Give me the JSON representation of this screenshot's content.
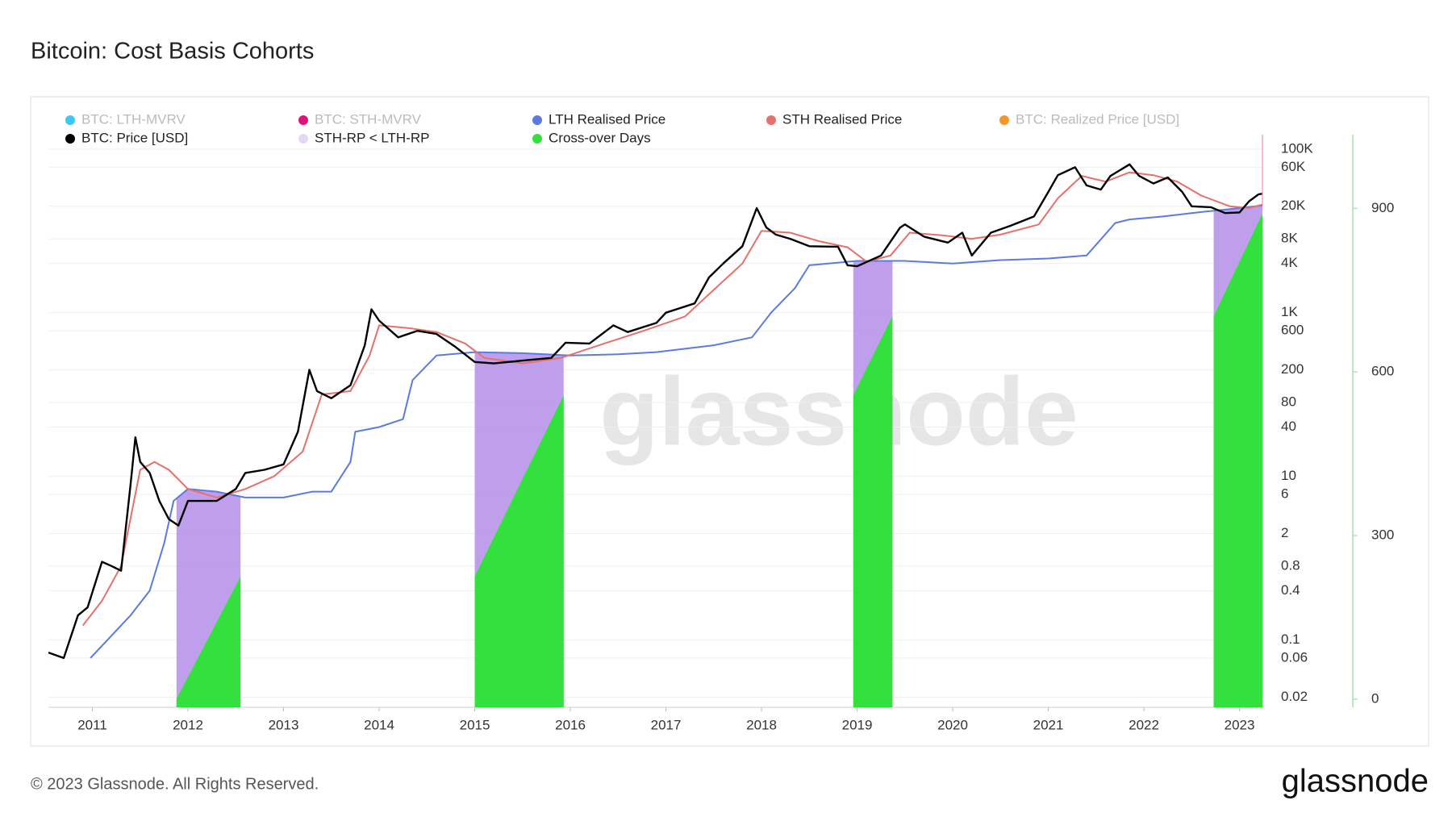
{
  "chart_data": {
    "type": "line",
    "title": "Bitcoin: Cost Basis Cohorts",
    "watermark": "glassnode",
    "footer": "© 2023 Glassnode. All Rights Reserved.",
    "logo": "glassnode",
    "log_scale": true,
    "grid": true,
    "xlim": [
      2010.54,
      2023.24
    ],
    "xticks": [
      2011,
      2012,
      2013,
      2014,
      2015,
      2016,
      2017,
      2018,
      2019,
      2020,
      2021,
      2022,
      2023
    ],
    "ylim": [
      0.015,
      150000
    ],
    "yticks": [
      {
        "value": 100000,
        "label": "100K"
      },
      {
        "value": 60000,
        "label": "60K"
      },
      {
        "value": 20000,
        "label": "20K"
      },
      {
        "value": 8000,
        "label": "8K"
      },
      {
        "value": 4000,
        "label": "4K"
      },
      {
        "value": 1000,
        "label": "1K"
      },
      600,
      200,
      80,
      40,
      10,
      6,
      2,
      0.8,
      0.4,
      0.1,
      0.06,
      0.02
    ],
    "y2lim": [
      -15,
      1035
    ],
    "y2ticks": [
      0,
      300,
      600,
      900
    ],
    "series": [
      {
        "name": "BTC: LTH-MVRV",
        "color": "#3dc7f5",
        "visible": false
      },
      {
        "name": "BTC: STH-MVRV",
        "color": "#e0137a",
        "visible": false
      },
      {
        "name": "LTH Realised Price",
        "color": "#5b7be0",
        "visible": true,
        "x": [
          2010.98,
          2011.4,
          2011.6,
          2011.75,
          2011.85,
          2012.0,
          2012.3,
          2012.6,
          2013.0,
          2013.3,
          2013.5,
          2013.7,
          2013.75,
          2014.0,
          2014.25,
          2014.35,
          2014.6,
          2015.0,
          2015.5,
          2016.0,
          2016.5,
          2016.9,
          2017.5,
          2017.9,
          2018.1,
          2018.35,
          2018.5,
          2019.0,
          2019.5,
          2020.0,
          2020.5,
          2021.0,
          2021.4,
          2021.7,
          2021.85,
          2022.2,
          2022.6,
          2023.0,
          2023.24
        ],
        "values": [
          0.06,
          0.2,
          0.4,
          1.5,
          5,
          7,
          6.5,
          5.5,
          5.5,
          6.5,
          6.5,
          15,
          35,
          40,
          50,
          150,
          300,
          330,
          320,
          300,
          310,
          330,
          400,
          500,
          1000,
          2000,
          3800,
          4300,
          4300,
          4000,
          4400,
          4600,
          5000,
          12500,
          13800,
          15000,
          17000,
          19000,
          20500
        ]
      },
      {
        "name": "STH Realised Price",
        "color": "#e8706b",
        "visible": true,
        "x": [
          2010.9,
          2011.1,
          2011.3,
          2011.5,
          2011.65,
          2011.8,
          2012.0,
          2012.3,
          2012.6,
          2012.9,
          2013.2,
          2013.4,
          2013.7,
          2013.9,
          2014.0,
          2014.3,
          2014.6,
          2014.9,
          2015.1,
          2015.5,
          2015.9,
          2016.3,
          2016.8,
          2017.2,
          2017.5,
          2017.8,
          2018.0,
          2018.3,
          2018.6,
          2018.9,
          2019.1,
          2019.35,
          2019.55,
          2019.9,
          2020.2,
          2020.5,
          2020.9,
          2021.1,
          2021.35,
          2021.6,
          2021.85,
          2022.1,
          2022.35,
          2022.6,
          2022.9,
          2023.1,
          2023.24
        ],
        "values": [
          0.15,
          0.3,
          0.8,
          12,
          15,
          12,
          7,
          5.5,
          7,
          10,
          20,
          100,
          110,
          300,
          700,
          650,
          580,
          420,
          280,
          240,
          280,
          400,
          620,
          900,
          1900,
          4000,
          10000,
          9500,
          7500,
          6300,
          4200,
          5000,
          9500,
          8800,
          8000,
          9000,
          12000,
          25000,
          47000,
          40000,
          52000,
          48000,
          40000,
          27000,
          20000,
          19000,
          21000
        ]
      },
      {
        "name": "BTC: Realized Price [USD]",
        "color": "#f5962a",
        "visible": false
      },
      {
        "name": "BTC: Price [USD]",
        "color": "#000000",
        "visible": true,
        "x": [
          2010.54,
          2010.7,
          2010.85,
          2010.95,
          2011.1,
          2011.2,
          2011.3,
          2011.4,
          2011.45,
          2011.5,
          2011.6,
          2011.7,
          2011.8,
          2011.9,
          2012.0,
          2012.1,
          2012.3,
          2012.5,
          2012.6,
          2012.8,
          2013.0,
          2013.15,
          2013.27,
          2013.35,
          2013.5,
          2013.7,
          2013.85,
          2013.92,
          2014.0,
          2014.2,
          2014.4,
          2014.6,
          2014.8,
          2015.0,
          2015.2,
          2015.5,
          2015.8,
          2015.95,
          2016.2,
          2016.45,
          2016.6,
          2016.9,
          2017.0,
          2017.3,
          2017.45,
          2017.6,
          2017.8,
          2017.95,
          2018.05,
          2018.15,
          2018.3,
          2018.5,
          2018.8,
          2018.9,
          2019.0,
          2019.25,
          2019.45,
          2019.5,
          2019.7,
          2019.95,
          2020.1,
          2020.2,
          2020.4,
          2020.6,
          2020.85,
          2021.0,
          2021.1,
          2021.28,
          2021.4,
          2021.55,
          2021.65,
          2021.85,
          2021.95,
          2022.1,
          2022.25,
          2022.4,
          2022.5,
          2022.7,
          2022.85,
          2023.0,
          2023.1,
          2023.2,
          2023.24
        ],
        "values": [
          0.07,
          0.06,
          0.2,
          0.25,
          0.9,
          0.8,
          0.7,
          8,
          30,
          15,
          11,
          5,
          3,
          2.5,
          5,
          5,
          5,
          7,
          11,
          12,
          14,
          35,
          200,
          110,
          90,
          130,
          400,
          1100,
          800,
          500,
          600,
          550,
          380,
          250,
          240,
          260,
          280,
          430,
          420,
          700,
          580,
          750,
          1000,
          1300,
          2700,
          4000,
          6500,
          19000,
          11000,
          9000,
          8000,
          6500,
          6400,
          3800,
          3700,
          5000,
          11000,
          12000,
          8500,
          7200,
          9500,
          5000,
          9500,
          11500,
          15000,
          30000,
          48000,
          60000,
          36000,
          32000,
          47000,
          65000,
          47000,
          38000,
          45000,
          30000,
          20000,
          19500,
          16500,
          16800,
          23000,
          28000,
          28500
        ]
      },
      {
        "name": "STH-RP < LTH-RP",
        "color": "#b48ee9",
        "visible": true,
        "ranges": [
          [
            2011.88,
            2012.55
          ],
          [
            2015.0,
            2015.93
          ],
          [
            2018.96,
            2019.37
          ],
          [
            2022.73,
            2023.24
          ]
        ]
      },
      {
        "name": "Cross-over Days",
        "color": "#33e03d",
        "visible": true,
        "axis": "y2",
        "x": [
          2011.88,
          2012.55,
          2015.0,
          2015.93,
          2018.96,
          2019.37,
          2022.73,
          2023.24
        ],
        "values": [
          0,
          225,
          225,
          557,
          557,
          702,
          702,
          890
        ]
      }
    ]
  }
}
